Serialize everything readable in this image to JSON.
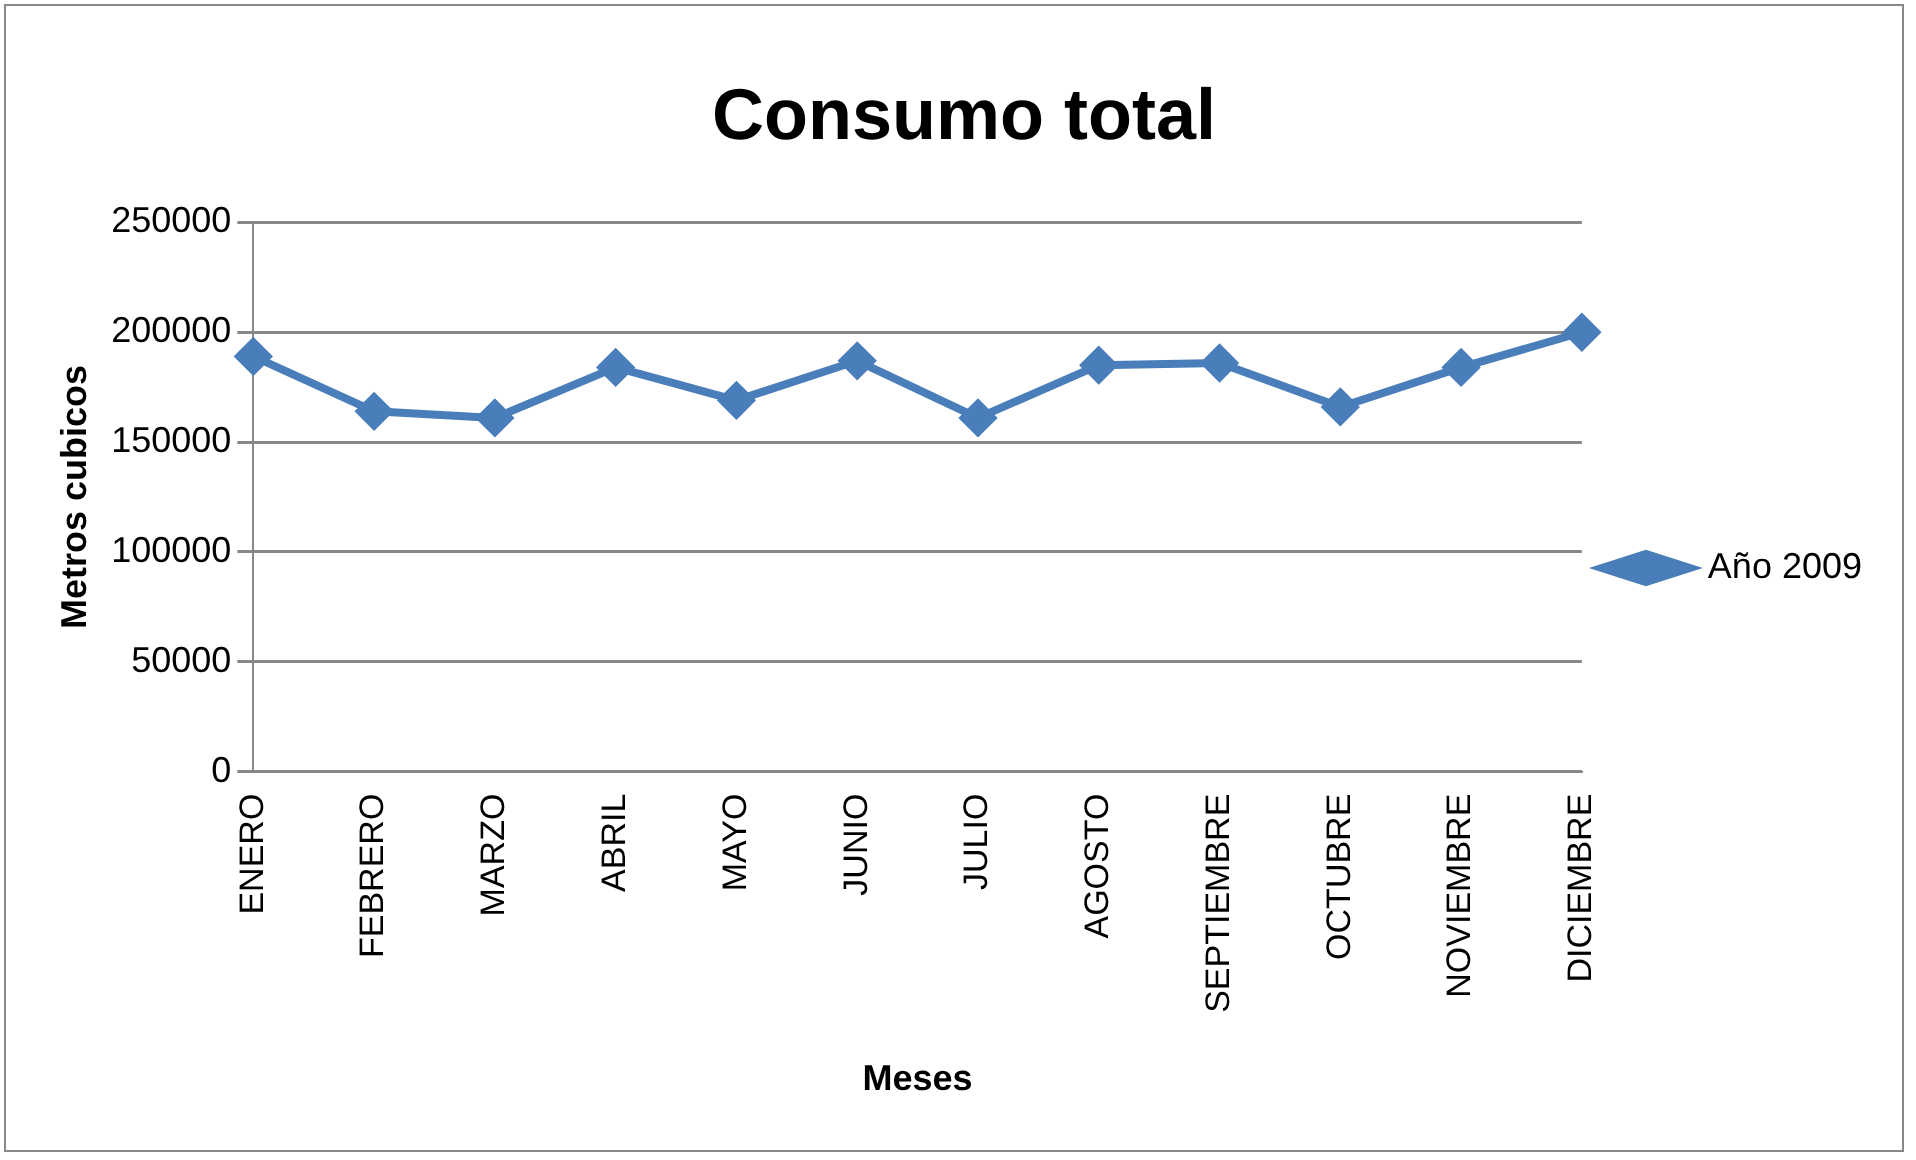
{
  "chart_data": {
    "type": "line",
    "title": "Consumo total",
    "xlabel": "Meses",
    "ylabel": "Metros cubicos",
    "categories": [
      "ENERO",
      "FEBRERO",
      "MARZO",
      "ABRIL",
      "MAYO",
      "JUNIO",
      "JULIO",
      "AGOSTO",
      "SEPTIEMBRE",
      "OCTUBRE",
      "NOVIEMBRE",
      "DICIEMBRE"
    ],
    "series": [
      {
        "name": "Año 2009",
        "color": "#4a7ebb",
        "values": [
          189000,
          164000,
          161000,
          184000,
          169000,
          187000,
          161000,
          185000,
          186000,
          166000,
          184000,
          200000
        ]
      }
    ],
    "ylim": [
      0,
      250000
    ],
    "yticks": [
      0,
      50000,
      100000,
      150000,
      200000,
      250000
    ],
    "grid": "y",
    "legend": "right",
    "marker": "diamond",
    "line_style": "solid"
  }
}
